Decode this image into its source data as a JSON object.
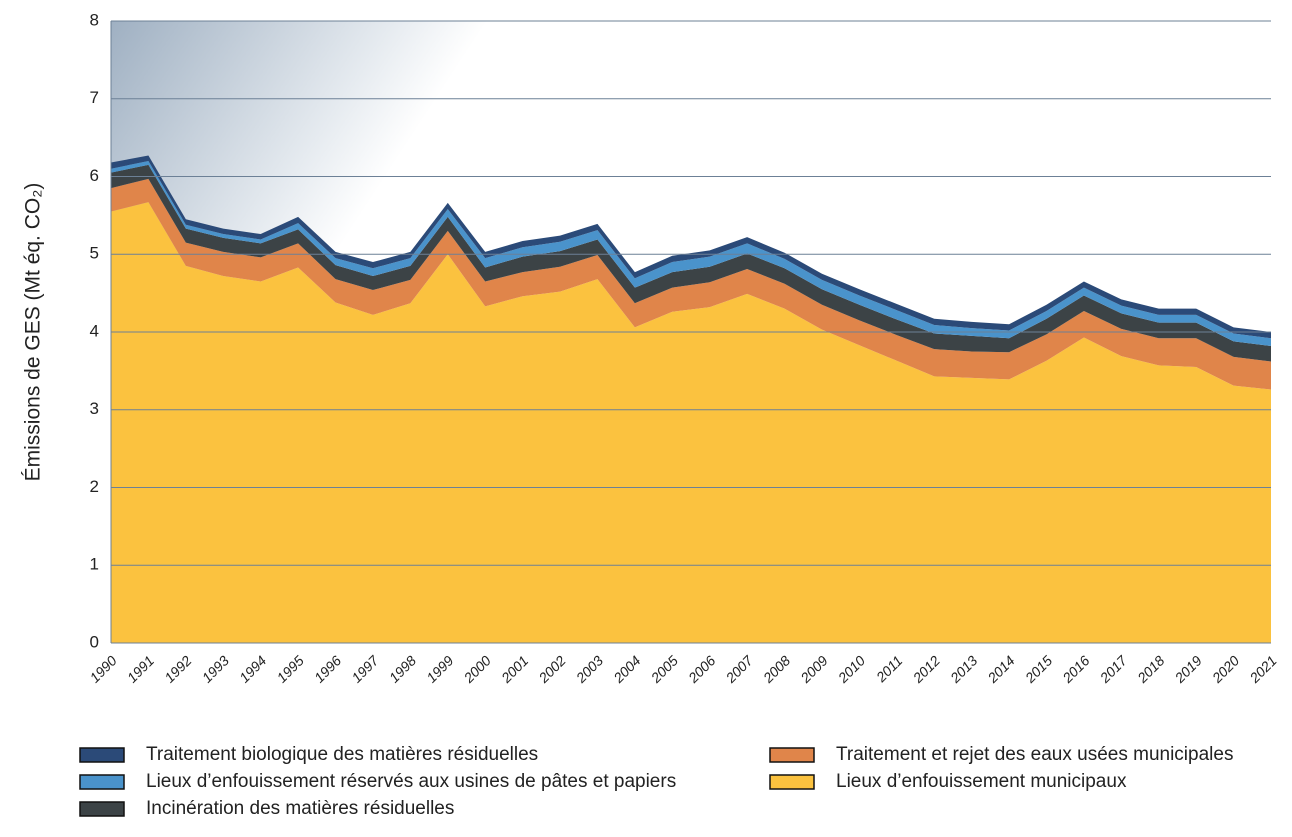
{
  "chart_data": {
    "type": "stacked_area",
    "ylabel": "Émissions de GES (Mt éq. CO₂)",
    "categories": [
      "1990",
      "1991",
      "1992",
      "1993",
      "1994",
      "1995",
      "1996",
      "1997",
      "1998",
      "1999",
      "2000",
      "2001",
      "2002",
      "2003",
      "2004",
      "2005",
      "2006",
      "2007",
      "2008",
      "2009",
      "2010",
      "2011",
      "2012",
      "2013",
      "2014",
      "2015",
      "2016",
      "2017",
      "2018",
      "2019",
      "2020",
      "2021"
    ],
    "ylim": [
      0,
      8
    ],
    "yticks": [
      0,
      1,
      2,
      3,
      4,
      5,
      6,
      7,
      8
    ],
    "grid": true,
    "series": [
      {
        "name": " Lieux d’enfouissement municipaux",
        "color": "#fbc23f",
        "values": [
          5.55,
          5.67,
          4.85,
          4.72,
          4.65,
          4.83,
          4.38,
          4.22,
          4.37,
          5.0,
          4.33,
          4.46,
          4.52,
          4.68,
          4.06,
          4.26,
          4.32,
          4.49,
          4.3,
          4.03,
          3.83,
          3.63,
          3.43,
          3.41,
          3.39,
          3.63,
          3.93,
          3.69,
          3.57,
          3.55,
          3.31,
          3.26
        ]
      },
      {
        "name": "Traitement et rejet des eaux usées municipales",
        "color": "#e0854a",
        "values": [
          0.3,
          0.3,
          0.3,
          0.31,
          0.31,
          0.31,
          0.3,
          0.32,
          0.3,
          0.3,
          0.32,
          0.31,
          0.32,
          0.31,
          0.31,
          0.31,
          0.32,
          0.32,
          0.32,
          0.32,
          0.32,
          0.33,
          0.35,
          0.34,
          0.35,
          0.34,
          0.34,
          0.35,
          0.35,
          0.37,
          0.37,
          0.36
        ]
      },
      {
        "name": "Incinération des matières résiduelles",
        "color": "#3c4346",
        "values": [
          0.2,
          0.18,
          0.18,
          0.18,
          0.18,
          0.18,
          0.18,
          0.18,
          0.18,
          0.18,
          0.18,
          0.2,
          0.2,
          0.2,
          0.2,
          0.2,
          0.2,
          0.2,
          0.2,
          0.2,
          0.2,
          0.2,
          0.2,
          0.2,
          0.18,
          0.2,
          0.2,
          0.2,
          0.2,
          0.2,
          0.2,
          0.2
        ]
      },
      {
        "name": "Lieux d’enfouissement réservés aux usines de pâtes et papiers",
        "color": "#4a93cb",
        "values": [
          0.05,
          0.05,
          0.05,
          0.05,
          0.05,
          0.08,
          0.09,
          0.1,
          0.1,
          0.1,
          0.12,
          0.12,
          0.12,
          0.12,
          0.12,
          0.13,
          0.13,
          0.13,
          0.12,
          0.12,
          0.12,
          0.12,
          0.11,
          0.1,
          0.1,
          0.1,
          0.1,
          0.1,
          0.1,
          0.1,
          0.1,
          0.1
        ]
      },
      {
        "name": "Traitement biologique des matières résiduelles",
        "color": "#2b4a78",
        "values": [
          0.08,
          0.07,
          0.07,
          0.07,
          0.07,
          0.08,
          0.08,
          0.08,
          0.08,
          0.08,
          0.08,
          0.08,
          0.08,
          0.08,
          0.08,
          0.08,
          0.08,
          0.08,
          0.08,
          0.08,
          0.08,
          0.08,
          0.08,
          0.08,
          0.08,
          0.08,
          0.08,
          0.08,
          0.08,
          0.08,
          0.08,
          0.08
        ]
      }
    ]
  }
}
